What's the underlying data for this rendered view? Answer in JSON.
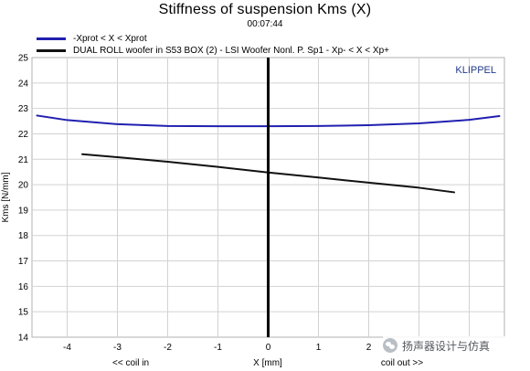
{
  "chart_data": {
    "type": "line",
    "title": "Stiffness of suspension Kms (X)",
    "timestamp": "00:07:44",
    "brand": "KLIPPEL",
    "xlabel": "X [mm]",
    "ylabel": "Kms [N/mm]",
    "x_annotation_left": "<< coil in",
    "x_annotation_right": "coil out >>",
    "xlim": [
      -4.7,
      4.7
    ],
    "ylim": [
      14,
      25
    ],
    "xticks": [
      -4,
      -3,
      -2,
      -1,
      0,
      1,
      2,
      3,
      4
    ],
    "yticks": [
      14,
      15,
      16,
      17,
      18,
      19,
      20,
      21,
      22,
      23,
      24,
      25
    ],
    "grid": true,
    "legend_position": "top-left",
    "series": [
      {
        "name": "-Xprot < X < Xprot",
        "color": "#2020b0",
        "x": [
          -4.6,
          -4,
          -3,
          -2,
          -1,
          0,
          1,
          2,
          3,
          4,
          4.6
        ],
        "y": [
          22.72,
          22.54,
          22.38,
          22.31,
          22.3,
          22.3,
          22.31,
          22.34,
          22.41,
          22.55,
          22.7
        ]
      },
      {
        "name": "DUAL ROLL woofer in S53 BOX (2) - LSI Woofer Nonl. P. Sp1 - Xp- < X < Xp+",
        "color": "#111111",
        "x": [
          -3.7,
          -3,
          -2,
          -1,
          0,
          1,
          2,
          3,
          3.7
        ],
        "y": [
          21.2,
          21.08,
          20.9,
          20.7,
          20.48,
          20.28,
          20.08,
          19.88,
          19.7
        ]
      }
    ],
    "zero_marker_x": 0
  },
  "watermark": {
    "icon": "wechat-icon",
    "text": "扬声器设计与仿真"
  }
}
